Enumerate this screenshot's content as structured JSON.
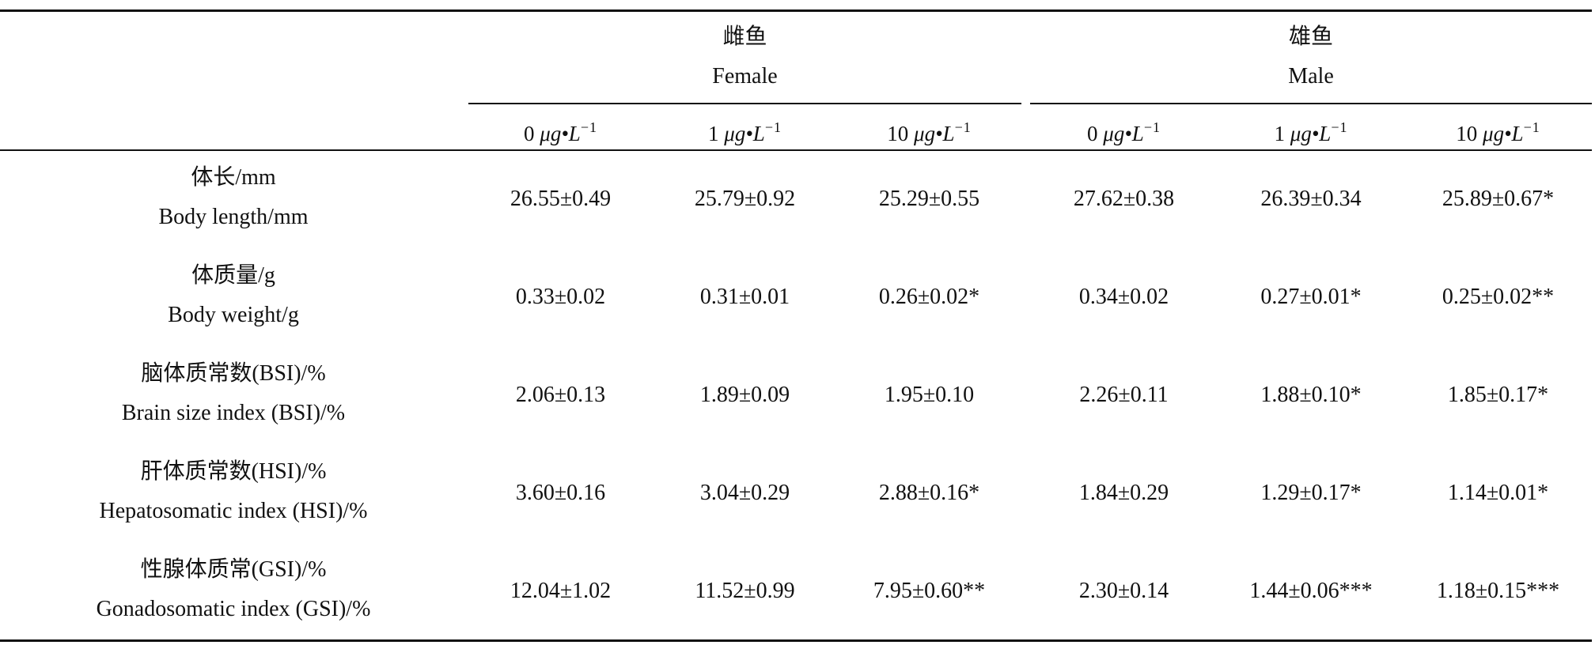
{
  "groups": [
    {
      "zh": "雌鱼",
      "en": "Female"
    },
    {
      "zh": "雄鱼",
      "en": "Male"
    }
  ],
  "concentrations": [
    {
      "num": "0",
      "unit": "μg•L",
      "exp": "−1"
    },
    {
      "num": "1",
      "unit": "μg•L",
      "exp": "−1"
    },
    {
      "num": "10",
      "unit": "μg•L",
      "exp": "−1"
    },
    {
      "num": "0",
      "unit": "μg•L",
      "exp": "−1"
    },
    {
      "num": "1",
      "unit": "μg•L",
      "exp": "−1"
    },
    {
      "num": "10",
      "unit": "μg•L",
      "exp": "−1"
    }
  ],
  "rows": [
    {
      "zh": "体长/mm",
      "en": "Body length/mm",
      "values": [
        "26.55±0.49",
        "25.79±0.92",
        "25.29±0.55",
        "27.62±0.38",
        "26.39±0.34",
        "25.89±0.67*"
      ]
    },
    {
      "zh": "体质量/g",
      "en": "Body weight/g",
      "values": [
        "0.33±0.02",
        "0.31±0.01",
        "0.26±0.02*",
        "0.34±0.02",
        "0.27±0.01*",
        "0.25±0.02**"
      ]
    },
    {
      "zh": "脑体质常数(BSI)/%",
      "en": "Brain size index (BSI)/%",
      "values": [
        "2.06±0.13",
        "1.89±0.09",
        "1.95±0.10",
        "2.26±0.11",
        "1.88±0.10*",
        "1.85±0.17*"
      ]
    },
    {
      "zh": "肝体质常数(HSI)/%",
      "en": "Hepatosomatic index (HSI)/%",
      "values": [
        "3.60±0.16",
        "3.04±0.29",
        "2.88±0.16*",
        "1.84±0.29",
        "1.29±0.17*",
        "1.14±0.01*"
      ]
    },
    {
      "zh": "性腺体质常(GSI)/%",
      "en": "Gonadosomatic index (GSI)/%",
      "values": [
        "12.04±1.02",
        "11.52±0.99",
        "7.95±0.60**",
        "2.30±0.14",
        "1.44±0.06***",
        "1.18±0.15***"
      ]
    }
  ]
}
